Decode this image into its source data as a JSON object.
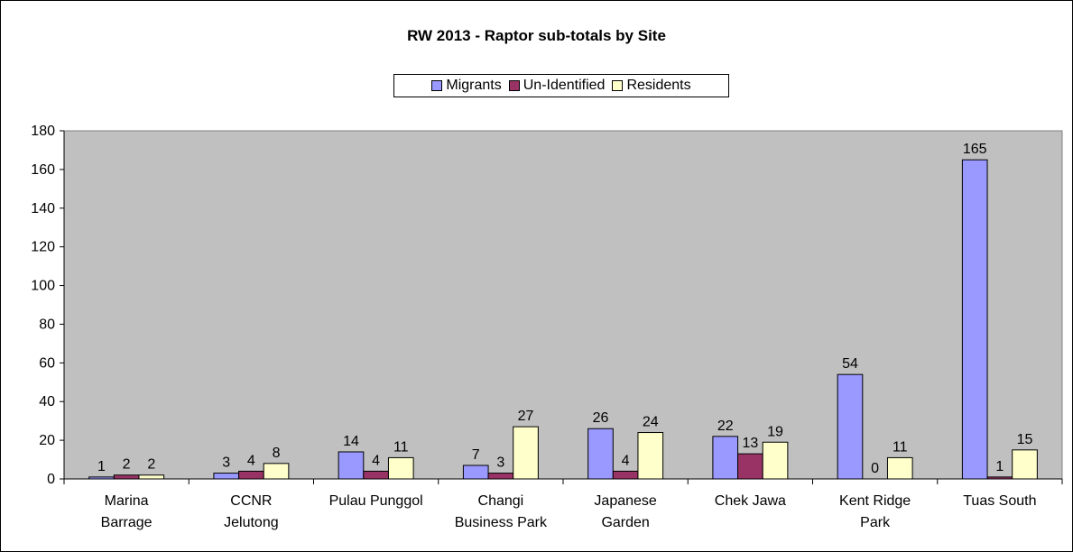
{
  "chart_data": {
    "type": "bar",
    "title": "RW 2013 - Raptor sub-totals by Site",
    "xlabel": "",
    "ylabel": "",
    "ylim": [
      0,
      180
    ],
    "yticks": [
      0,
      20,
      40,
      60,
      80,
      100,
      120,
      140,
      160,
      180
    ],
    "grid": false,
    "legend_position": "top",
    "categories": [
      [
        "Marina",
        "Barrage"
      ],
      [
        "CCNR",
        "Jelutong"
      ],
      [
        "Pulau Punggol"
      ],
      [
        "Changi",
        "Business Park"
      ],
      [
        "Japanese",
        "Garden"
      ],
      [
        "Chek Jawa"
      ],
      [
        "Kent Ridge",
        "Park"
      ],
      [
        "Tuas South"
      ]
    ],
    "series": [
      {
        "name": "Migrants",
        "color": "#9999ff",
        "values": [
          1,
          3,
          14,
          7,
          26,
          22,
          54,
          165
        ]
      },
      {
        "name": "Un-Identified",
        "color": "#993366",
        "values": [
          2,
          4,
          4,
          3,
          4,
          13,
          0,
          1
        ]
      },
      {
        "name": "Residents",
        "color": "#ffffcc",
        "values": [
          2,
          8,
          11,
          27,
          24,
          19,
          11,
          15
        ]
      }
    ],
    "plot_background": "#c0c0c0"
  }
}
